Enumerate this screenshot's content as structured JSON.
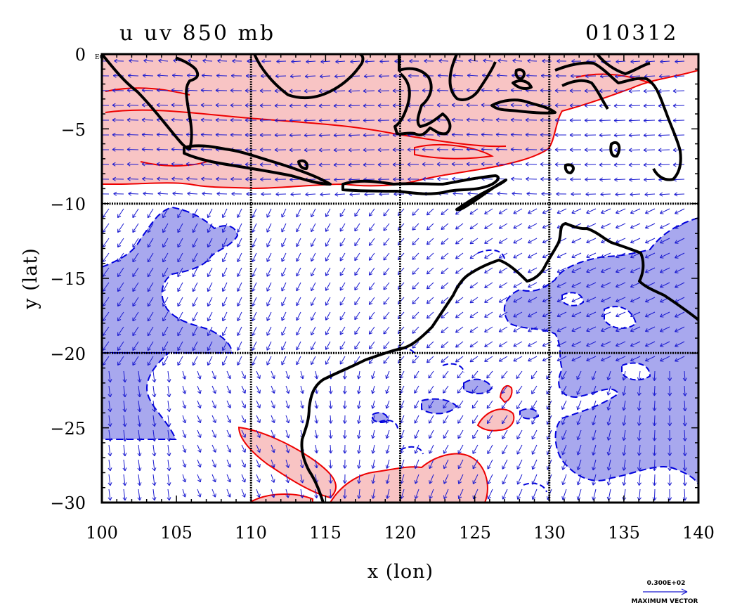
{
  "title_left": "u  uv 850 mb",
  "title_right": "010312",
  "eq_label": "EQ",
  "xlabel": "x (lon)",
  "ylabel": "y (lat)",
  "x_ticks": [
    "100",
    "105",
    "110",
    "115",
    "120",
    "125",
    "130",
    "135",
    "140"
  ],
  "y_ticks": [
    "0",
    "−5",
    "−10",
    "−15",
    "−20",
    "−25",
    "−30"
  ],
  "x_range": [
    100,
    140
  ],
  "y_range": [
    -30,
    0
  ],
  "grid_lon": [
    110,
    120,
    130
  ],
  "grid_lat": [
    -10,
    -20
  ],
  "vector_legend": {
    "value": "0.300E+02",
    "label": "MAXIMUM VECTOR"
  },
  "colors": {
    "positive_fill": "#f8c4c4",
    "positive_line": "#ee0000",
    "negative_fill": "#a8a8ee",
    "negative_line": "#0000dd",
    "vector": "#1a1ad0",
    "coast": "#000000"
  }
}
